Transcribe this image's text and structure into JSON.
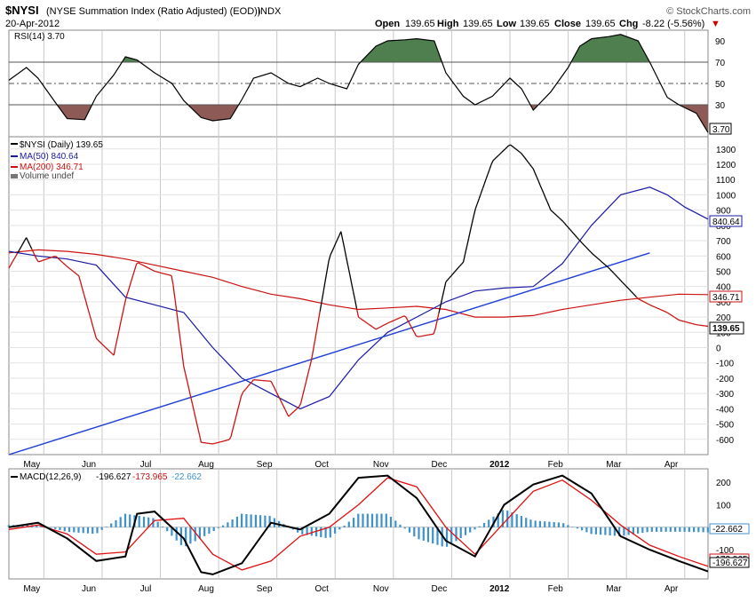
{
  "header": {
    "symbol": "$NYSI",
    "description": "(NYSE Summation Index (Ratio Adjusted) (EOD))",
    "exchange": "INDX",
    "date": "20-Apr-2012",
    "watermark": "© StockCharts.com",
    "open_label": "Open",
    "open_value": "139.65",
    "high_label": "High",
    "high_value": "139.65",
    "low_label": "Low",
    "low_value": "139.65",
    "close_label": "Close",
    "close_value": "139.65",
    "chg_label": "Chg",
    "chg_value": "-8.22 (-5.56%)",
    "chg_arrow": "▼"
  },
  "colors": {
    "price": "#000000",
    "ma50": "#1a1aa6",
    "ma200": "#cc1111",
    "trendline": "#1f3fd6",
    "rsi_over": "#4f7f4f",
    "rsi_under": "#8e5a55",
    "histogram": "#3d92cc",
    "macd_signal": "#e01010",
    "grid": "#c8c8c8"
  },
  "x_axis": {
    "labels": [
      "May",
      "Jun",
      "Jul",
      "Aug",
      "Sep",
      "Oct",
      "Nov",
      "Dec",
      "2012",
      "Feb",
      "Mar",
      "Apr"
    ]
  },
  "chart_data": [
    {
      "type": "line",
      "panel": "rsi",
      "legend": "RSI(14) 3.70",
      "ylim": [
        0,
        100
      ],
      "y_ticks": [
        10,
        30,
        50,
        70,
        90
      ],
      "reference_lines": [
        30,
        50,
        70
      ],
      "last_value_label": "3.70",
      "series": [
        {
          "name": "RSI(14)",
          "x": [
            0,
            0.3,
            0.5,
            0.8,
            1,
            1.3,
            1.5,
            1.8,
            2,
            2.2,
            2.5,
            2.8,
            3,
            3.3,
            3.5,
            3.8,
            4,
            4.2,
            4.5,
            4.8,
            5,
            5.3,
            5.5,
            5.8,
            6,
            6.3,
            6.5,
            6.8,
            7,
            7.3,
            7.5,
            7.8,
            8,
            8.3,
            8.6,
            8.8,
            9,
            9.3,
            9.6,
            9.8,
            10,
            10.3,
            10.5,
            10.8,
            11,
            11.3,
            11.5,
            11.8,
            12
          ],
          "values": [
            53,
            65,
            55,
            32,
            17,
            16,
            38,
            58,
            75,
            72,
            60,
            50,
            34,
            18,
            15,
            17,
            35,
            55,
            60,
            50,
            47,
            55,
            50,
            45,
            68,
            85,
            90,
            91,
            92,
            90,
            60,
            38,
            30,
            38,
            55,
            45,
            25,
            42,
            65,
            85,
            92,
            94,
            96,
            90,
            70,
            37,
            30,
            22,
            4
          ]
        }
      ]
    },
    {
      "type": "line",
      "panel": "price",
      "y_ticks": [
        -600,
        -500,
        -400,
        -300,
        -200,
        -100,
        0,
        100,
        200,
        300,
        400,
        500,
        600,
        700,
        800,
        900,
        1000,
        1100,
        1200,
        1300
      ],
      "ylim": [
        -700,
        1380
      ],
      "legend": [
        "$NYSI (Daily) 139.65",
        "MA(50) 840.64",
        "MA(200) 346.71",
        "Volume undef"
      ],
      "last_value_labels": {
        "price": "139.65",
        "ma50": "840.64",
        "ma200": "346.71"
      },
      "series": [
        {
          "name": "$NYSI (Daily)",
          "x": [
            0,
            0.3,
            0.5,
            0.8,
            1,
            1.2,
            1.5,
            1.8,
            2,
            2.2,
            2.5,
            2.8,
            3,
            3.3,
            3.5,
            3.8,
            4,
            4.2,
            4.5,
            4.8,
            5,
            5.2,
            5.5,
            5.7,
            6,
            6.3,
            6.5,
            6.8,
            7,
            7.3,
            7.5,
            7.8,
            8,
            8.3,
            8.6,
            8.8,
            9,
            9.3,
            9.5,
            9.8,
            10,
            10.3,
            10.5,
            10.8,
            11,
            11.3,
            11.5,
            11.8,
            12
          ],
          "values": [
            520,
            720,
            560,
            600,
            530,
            470,
            60,
            -50,
            310,
            560,
            500,
            470,
            -120,
            -620,
            -630,
            -600,
            -300,
            -210,
            -220,
            -450,
            -380,
            -70,
            590,
            760,
            200,
            120,
            160,
            210,
            70,
            90,
            430,
            560,
            900,
            1220,
            1330,
            1270,
            1170,
            900,
            830,
            700,
            620,
            520,
            440,
            320,
            280,
            230,
            180,
            150,
            139.65
          ]
        },
        {
          "name": "MA(50)",
          "x": [
            0,
            0.5,
            1,
            1.5,
            2,
            2.5,
            3,
            3.5,
            4,
            4.5,
            5,
            5.5,
            6,
            6.5,
            7,
            7.5,
            8,
            8.5,
            9,
            9.5,
            10,
            10.5,
            11,
            11.3,
            11.6,
            12
          ],
          "values": [
            630,
            600,
            580,
            540,
            330,
            280,
            230,
            0,
            -200,
            -300,
            -400,
            -320,
            -80,
            100,
            200,
            300,
            370,
            390,
            400,
            550,
            800,
            1000,
            1050,
            1000,
            920,
            840.64
          ]
        },
        {
          "name": "MA(200)",
          "x": [
            0,
            0.5,
            1,
            1.5,
            2,
            2.5,
            3,
            3.5,
            4,
            4.5,
            5,
            5.5,
            6,
            6.5,
            7,
            7.5,
            8,
            8.5,
            9,
            9.5,
            10,
            10.5,
            11,
            11.5,
            12
          ],
          "values": [
            620,
            640,
            630,
            610,
            580,
            540,
            500,
            460,
            400,
            350,
            320,
            280,
            250,
            260,
            270,
            250,
            200,
            200,
            210,
            250,
            280,
            310,
            330,
            350,
            346.71
          ]
        },
        {
          "name": "Trend line",
          "x": [
            0,
            11
          ],
          "values": [
            -700,
            620
          ]
        }
      ]
    },
    {
      "type": "line",
      "panel": "macd",
      "legend": [
        "MACD(12,26,9)",
        "-196.627",
        "-173.965",
        "-22.662"
      ],
      "ylim": [
        -230,
        260
      ],
      "y_ticks": [
        -100,
        100,
        200
      ],
      "last_value_labels": {
        "histogram": "-22.662",
        "signal": "-173.965",
        "macd": "-196.627"
      },
      "series": [
        {
          "name": "MACD",
          "x": [
            0,
            0.5,
            1,
            1.5,
            2,
            2.2,
            2.5,
            3,
            3.3,
            3.5,
            4,
            4.5,
            5,
            5.5,
            6,
            6.5,
            7,
            7.5,
            8,
            8.5,
            9,
            9.5,
            10,
            10.5,
            11,
            11.5,
            12
          ],
          "values": [
            0,
            20,
            -50,
            -150,
            -130,
            60,
            70,
            -50,
            -200,
            -210,
            -160,
            20,
            -10,
            60,
            220,
            230,
            130,
            -60,
            -130,
            100,
            190,
            230,
            150,
            -40,
            -100,
            -150,
            -196.627
          ]
        },
        {
          "name": "Signal",
          "x": [
            0,
            0.5,
            1,
            1.5,
            2,
            2.5,
            3,
            3.5,
            4,
            4.5,
            5,
            5.5,
            6,
            6.5,
            7,
            7.5,
            8,
            8.5,
            9,
            9.5,
            10,
            10.5,
            11,
            11.5,
            12
          ],
          "values": [
            -10,
            10,
            -30,
            -120,
            -110,
            30,
            40,
            -120,
            -190,
            -150,
            -40,
            0,
            100,
            220,
            180,
            0,
            -120,
            20,
            160,
            210,
            120,
            10,
            -80,
            -130,
            -173.965
          ]
        },
        {
          "name": "Histogram",
          "x": [
            0,
            0.5,
            1,
            1.5,
            2,
            2.5,
            3,
            3.5,
            4,
            4.5,
            5,
            5.5,
            6,
            6.5,
            7,
            7.5,
            8,
            8.5,
            9,
            9.5,
            10,
            10.5,
            11,
            11.5,
            12
          ],
          "values": [
            10,
            10,
            -20,
            -30,
            60,
            40,
            -90,
            -20,
            60,
            50,
            -30,
            -50,
            60,
            60,
            -50,
            -90,
            -10,
            80,
            30,
            20,
            -30,
            -40,
            -20,
            -20,
            -22.662
          ]
        }
      ]
    }
  ]
}
